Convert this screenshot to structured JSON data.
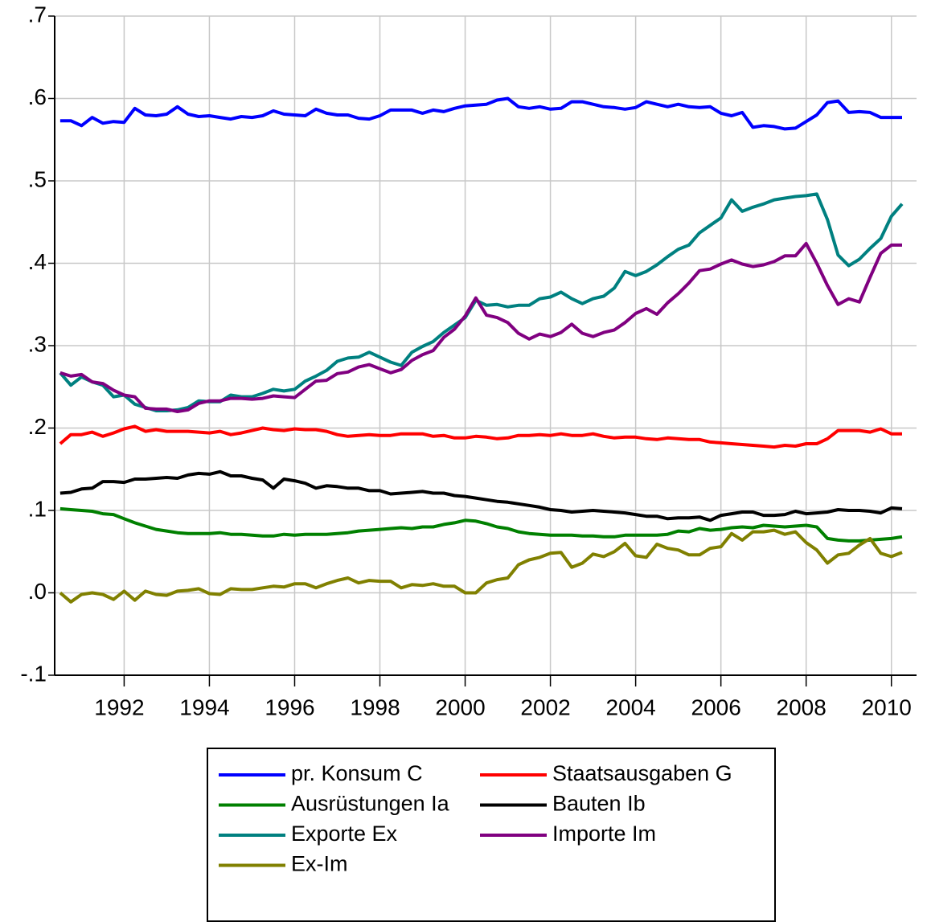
{
  "chart_data": {
    "type": "line",
    "x": [
      1991,
      1991.25,
      1991.5,
      1991.75,
      1992,
      1992.25,
      1992.5,
      1992.75,
      1993,
      1993.25,
      1993.5,
      1993.75,
      1994,
      1994.25,
      1994.5,
      1994.75,
      1995,
      1995.25,
      1995.5,
      1995.75,
      1996,
      1996.25,
      1996.5,
      1996.75,
      1997,
      1997.25,
      1997.5,
      1997.75,
      1998,
      1998.25,
      1998.5,
      1998.75,
      1999,
      1999.25,
      1999.5,
      1999.75,
      2000,
      2000.25,
      2000.5,
      2000.75,
      2001,
      2001.25,
      2001.5,
      2001.75,
      2002,
      2002.25,
      2002.5,
      2002.75,
      2003,
      2003.25,
      2003.5,
      2003.75,
      2004,
      2004.25,
      2004.5,
      2004.75,
      2005,
      2005.25,
      2005.5,
      2005.75,
      2006,
      2006.25,
      2006.5,
      2006.75,
      2007,
      2007.25,
      2007.5,
      2007.75,
      2008,
      2008.25,
      2008.5,
      2008.75,
      2009,
      2009.25,
      2009.5,
      2009.75,
      2010,
      2010.25,
      2010.5,
      2010.75
    ],
    "series": [
      {
        "name": "pr. Konsum C",
        "color": "#0000ff",
        "values": [
          0.573,
          0.573,
          0.567,
          0.577,
          0.57,
          0.572,
          0.571,
          0.588,
          0.58,
          0.579,
          0.581,
          0.59,
          0.581,
          0.578,
          0.579,
          0.577,
          0.575,
          0.578,
          0.577,
          0.579,
          0.585,
          0.581,
          0.58,
          0.579,
          0.587,
          0.582,
          0.58,
          0.58,
          0.576,
          0.575,
          0.579,
          0.586,
          0.586,
          0.586,
          0.582,
          0.586,
          0.584,
          0.588,
          0.591,
          0.592,
          0.593,
          0.598,
          0.6,
          0.59,
          0.588,
          0.59,
          0.587,
          0.588,
          0.596,
          0.596,
          0.593,
          0.59,
          0.589,
          0.587,
          0.589,
          0.596,
          0.593,
          0.59,
          0.593,
          0.59,
          0.589,
          0.59,
          0.582,
          0.579,
          0.583,
          0.565,
          0.567,
          0.566,
          0.563,
          0.564,
          0.572,
          0.58,
          0.595,
          0.597,
          0.583,
          0.584,
          0.583,
          0.577,
          0.577,
          0.577
        ]
      },
      {
        "name": "Staatsausgaben G",
        "color": "#ff0000",
        "values": [
          0.181,
          0.192,
          0.192,
          0.195,
          0.19,
          0.194,
          0.199,
          0.202,
          0.196,
          0.198,
          0.196,
          0.196,
          0.196,
          0.195,
          0.194,
          0.196,
          0.192,
          0.194,
          0.197,
          0.2,
          0.198,
          0.197,
          0.199,
          0.198,
          0.198,
          0.196,
          0.192,
          0.19,
          0.191,
          0.192,
          0.191,
          0.191,
          0.193,
          0.193,
          0.193,
          0.19,
          0.191,
          0.188,
          0.188,
          0.19,
          0.189,
          0.187,
          0.188,
          0.191,
          0.191,
          0.192,
          0.191,
          0.193,
          0.191,
          0.191,
          0.193,
          0.19,
          0.188,
          0.189,
          0.189,
          0.187,
          0.186,
          0.188,
          0.187,
          0.186,
          0.186,
          0.183,
          0.182,
          0.181,
          0.18,
          0.179,
          0.178,
          0.177,
          0.179,
          0.178,
          0.181,
          0.181,
          0.187,
          0.197,
          0.197,
          0.197,
          0.195,
          0.199,
          0.193,
          0.193
        ]
      },
      {
        "name": "Ausrüstungen Ia",
        "color": "#008000",
        "values": [
          0.102,
          0.101,
          0.1,
          0.099,
          0.096,
          0.095,
          0.09,
          0.085,
          0.081,
          0.077,
          0.075,
          0.073,
          0.072,
          0.072,
          0.072,
          0.073,
          0.071,
          0.071,
          0.07,
          0.069,
          0.069,
          0.071,
          0.07,
          0.071,
          0.071,
          0.071,
          0.072,
          0.073,
          0.075,
          0.076,
          0.077,
          0.078,
          0.079,
          0.078,
          0.08,
          0.08,
          0.083,
          0.085,
          0.088,
          0.087,
          0.084,
          0.08,
          0.078,
          0.074,
          0.072,
          0.071,
          0.07,
          0.07,
          0.07,
          0.069,
          0.069,
          0.068,
          0.068,
          0.07,
          0.07,
          0.07,
          0.07,
          0.071,
          0.075,
          0.074,
          0.078,
          0.076,
          0.077,
          0.079,
          0.08,
          0.079,
          0.082,
          0.081,
          0.08,
          0.081,
          0.082,
          0.08,
          0.066,
          0.064,
          0.063,
          0.063,
          0.064,
          0.065,
          0.066,
          0.068
        ]
      },
      {
        "name": "Bauten Ib",
        "color": "#000000",
        "values": [
          0.121,
          0.122,
          0.126,
          0.127,
          0.135,
          0.135,
          0.134,
          0.138,
          0.138,
          0.139,
          0.14,
          0.139,
          0.143,
          0.145,
          0.144,
          0.147,
          0.142,
          0.142,
          0.139,
          0.137,
          0.127,
          0.138,
          0.136,
          0.133,
          0.127,
          0.13,
          0.129,
          0.127,
          0.127,
          0.124,
          0.124,
          0.12,
          0.121,
          0.122,
          0.123,
          0.121,
          0.121,
          0.118,
          0.117,
          0.115,
          0.113,
          0.111,
          0.11,
          0.108,
          0.106,
          0.104,
          0.101,
          0.1,
          0.098,
          0.099,
          0.1,
          0.099,
          0.098,
          0.097,
          0.095,
          0.093,
          0.093,
          0.09,
          0.091,
          0.091,
          0.092,
          0.088,
          0.094,
          0.096,
          0.098,
          0.098,
          0.094,
          0.094,
          0.095,
          0.099,
          0.096,
          0.097,
          0.098,
          0.101,
          0.1,
          0.1,
          0.099,
          0.097,
          0.103,
          0.102
        ]
      },
      {
        "name": "Exporte Ex",
        "color": "#008080",
        "values": [
          0.267,
          0.252,
          0.262,
          0.256,
          0.252,
          0.238,
          0.24,
          0.229,
          0.225,
          0.221,
          0.221,
          0.222,
          0.225,
          0.233,
          0.232,
          0.232,
          0.24,
          0.238,
          0.238,
          0.242,
          0.247,
          0.245,
          0.247,
          0.257,
          0.263,
          0.27,
          0.281,
          0.285,
          0.286,
          0.292,
          0.286,
          0.28,
          0.276,
          0.292,
          0.299,
          0.305,
          0.316,
          0.325,
          0.334,
          0.355,
          0.349,
          0.35,
          0.347,
          0.349,
          0.349,
          0.357,
          0.359,
          0.365,
          0.357,
          0.351,
          0.357,
          0.36,
          0.37,
          0.39,
          0.385,
          0.39,
          0.398,
          0.408,
          0.417,
          0.422,
          0.437,
          0.446,
          0.455,
          0.477,
          0.463,
          0.468,
          0.472,
          0.477,
          0.479,
          0.481,
          0.482,
          0.484,
          0.453,
          0.41,
          0.397,
          0.405,
          0.418,
          0.43,
          0.457,
          0.472
        ]
      },
      {
        "name": "Importe Im",
        "color": "#800080",
        "values": [
          0.267,
          0.263,
          0.265,
          0.256,
          0.254,
          0.246,
          0.24,
          0.238,
          0.224,
          0.223,
          0.223,
          0.22,
          0.222,
          0.23,
          0.233,
          0.233,
          0.236,
          0.236,
          0.235,
          0.236,
          0.239,
          0.238,
          0.237,
          0.247,
          0.257,
          0.258,
          0.266,
          0.268,
          0.274,
          0.277,
          0.272,
          0.267,
          0.271,
          0.282,
          0.289,
          0.294,
          0.31,
          0.32,
          0.336,
          0.358,
          0.337,
          0.334,
          0.328,
          0.315,
          0.308,
          0.314,
          0.311,
          0.316,
          0.326,
          0.315,
          0.311,
          0.316,
          0.319,
          0.328,
          0.339,
          0.345,
          0.338,
          0.352,
          0.363,
          0.376,
          0.391,
          0.393,
          0.399,
          0.404,
          0.399,
          0.396,
          0.398,
          0.402,
          0.409,
          0.409,
          0.424,
          0.4,
          0.373,
          0.35,
          0.357,
          0.353,
          0.383,
          0.412,
          0.422,
          0.422
        ]
      },
      {
        "name": "Ex-Im",
        "color": "#808000",
        "values": [
          0.0,
          -0.011,
          -0.002,
          0.0,
          -0.002,
          -0.008,
          0.002,
          -0.009,
          0.002,
          -0.002,
          -0.003,
          0.002,
          0.003,
          0.005,
          -0.001,
          -0.002,
          0.005,
          0.004,
          0.004,
          0.006,
          0.008,
          0.007,
          0.011,
          0.011,
          0.006,
          0.011,
          0.015,
          0.018,
          0.012,
          0.015,
          0.014,
          0.014,
          0.006,
          0.01,
          0.009,
          0.011,
          0.008,
          0.008,
          0.0,
          0.0,
          0.012,
          0.016,
          0.018,
          0.034,
          0.04,
          0.043,
          0.048,
          0.049,
          0.031,
          0.036,
          0.047,
          0.044,
          0.05,
          0.06,
          0.045,
          0.043,
          0.059,
          0.054,
          0.052,
          0.046,
          0.046,
          0.054,
          0.056,
          0.072,
          0.064,
          0.074,
          0.074,
          0.076,
          0.071,
          0.074,
          0.061,
          0.052,
          0.036,
          0.046,
          0.048,
          0.058,
          0.066,
          0.048,
          0.044,
          0.049
        ]
      }
    ],
    "xlim": [
      1990.87,
      2011.09
    ],
    "xticks": [
      {
        "value": 1992.5,
        "label": "1992"
      },
      {
        "value": 1994.5,
        "label": "1994"
      },
      {
        "value": 1996.5,
        "label": "1996"
      },
      {
        "value": 1998.5,
        "label": "1998"
      },
      {
        "value": 2000.5,
        "label": "2000"
      },
      {
        "value": 2002.5,
        "label": "2002"
      },
      {
        "value": 2004.5,
        "label": "2004"
      },
      {
        "value": 2006.5,
        "label": "2006"
      },
      {
        "value": 2008.5,
        "label": "2008"
      },
      {
        "value": 2010.5,
        "label": "2010"
      }
    ],
    "ylim": [
      -0.1,
      0.7
    ],
    "yticks": [
      {
        "value": -0.1,
        "label": "-.1"
      },
      {
        "value": 0,
        "label": ".0"
      },
      {
        "value": 0.1,
        "label": ".1"
      },
      {
        "value": 0.2,
        "label": ".2"
      },
      {
        "value": 0.3,
        "label": ".3"
      },
      {
        "value": 0.4,
        "label": ".4"
      },
      {
        "value": 0.5,
        "label": ".5"
      },
      {
        "value": 0.6,
        "label": ".6"
      },
      {
        "value": 0.7,
        "label": ".7"
      }
    ],
    "grid": true,
    "legend": "bottom"
  }
}
